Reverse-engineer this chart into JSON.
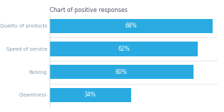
{
  "title": "Chart of positive responses",
  "categories": [
    "Quality of products",
    "Speed of service",
    "Parking",
    "Cleanliness"
  ],
  "values": [
    68,
    62,
    60,
    34
  ],
  "bar_color": "#29ABE2",
  "text_color": "#FFFFFF",
  "label_color": "#8899AA",
  "title_color": "#555566",
  "background_color": "#FFFFFF",
  "xlim": [
    0,
    70
  ],
  "bar_height": 0.62,
  "title_fontsize": 5.8,
  "label_fontsize": 5.0,
  "value_fontsize": 5.5
}
